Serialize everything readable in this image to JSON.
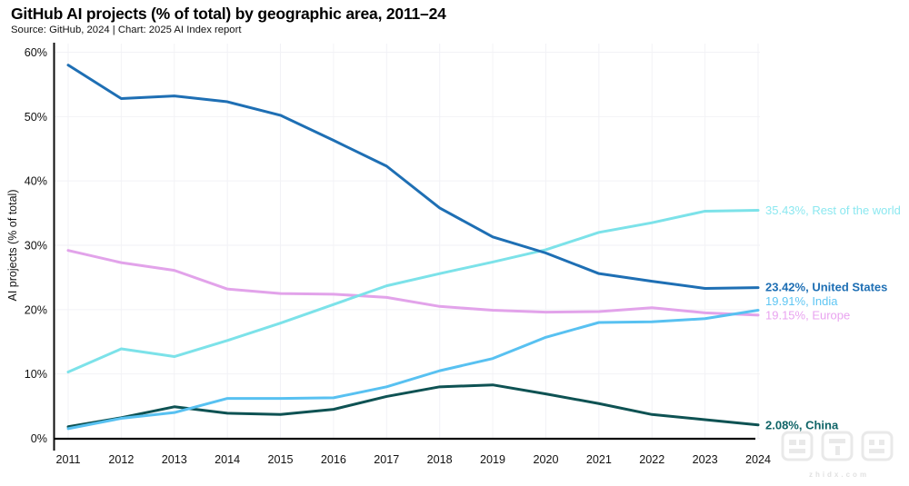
{
  "header": {
    "title": "GitHub AI projects (% of total) by geographic area, 2011–24",
    "subtitle": "Source: GitHub, 2024 | Chart: 2025 AI Index report"
  },
  "watermark": {
    "logo_text": "智东西",
    "domain": "zhidx.com"
  },
  "chart_data": {
    "type": "line",
    "title": "GitHub AI projects (% of total) by geographic area, 2011–24",
    "xlabel": "",
    "ylabel": "AI projects (% of total)",
    "x": [
      2011,
      2012,
      2013,
      2014,
      2015,
      2016,
      2017,
      2018,
      2019,
      2020,
      2021,
      2022,
      2023,
      2024
    ],
    "ylim": [
      0,
      60
    ],
    "yticks": [
      0,
      10,
      20,
      30,
      40,
      50,
      60
    ],
    "ytick_suffix": "%",
    "grid": true,
    "legend_position": "right-edge-end-labels",
    "series": [
      {
        "name": "Europe",
        "color": "#e2a3ea",
        "label_color": "#e9a4f0",
        "end_label": "19.15%, Europe",
        "emphasis": false,
        "values": [
          29.2,
          27.3,
          26.1,
          23.2,
          22.5,
          22.4,
          21.9,
          20.5,
          19.9,
          19.6,
          19.7,
          20.3,
          19.5,
          19.15
        ]
      },
      {
        "name": "Rest of the world",
        "color": "#7ce2e9",
        "label_color": "#8ce8f0",
        "end_label": "35.43%, Rest of the world",
        "emphasis": false,
        "values": [
          10.3,
          13.9,
          12.7,
          15.2,
          17.9,
          20.8,
          23.7,
          25.6,
          27.4,
          29.3,
          32.0,
          33.5,
          35.3,
          35.43
        ]
      },
      {
        "name": "China",
        "color": "#0e5253",
        "label_color": "#0f6467",
        "end_label": "2.08%, China",
        "emphasis": true,
        "values": [
          1.8,
          3.2,
          4.9,
          3.9,
          3.7,
          4.5,
          6.5,
          8.0,
          8.3,
          6.9,
          5.4,
          3.7,
          2.9,
          2.08
        ]
      },
      {
        "name": "India",
        "color": "#58c1f1",
        "label_color": "#5fc6f3",
        "end_label": "19.91%, India",
        "emphasis": false,
        "values": [
          1.5,
          3.1,
          4.0,
          6.2,
          6.2,
          6.3,
          8.0,
          10.5,
          12.4,
          15.7,
          18.0,
          18.1,
          18.6,
          19.91
        ]
      },
      {
        "name": "United States",
        "color": "#1e6fb4",
        "label_color": "#1e6fb4",
        "end_label": "23.42%, United States",
        "emphasis": true,
        "values": [
          58.0,
          52.8,
          53.2,
          52.3,
          50.2,
          46.3,
          42.3,
          35.8,
          31.3,
          28.8,
          25.6,
          24.4,
          23.3,
          23.42
        ]
      }
    ]
  }
}
